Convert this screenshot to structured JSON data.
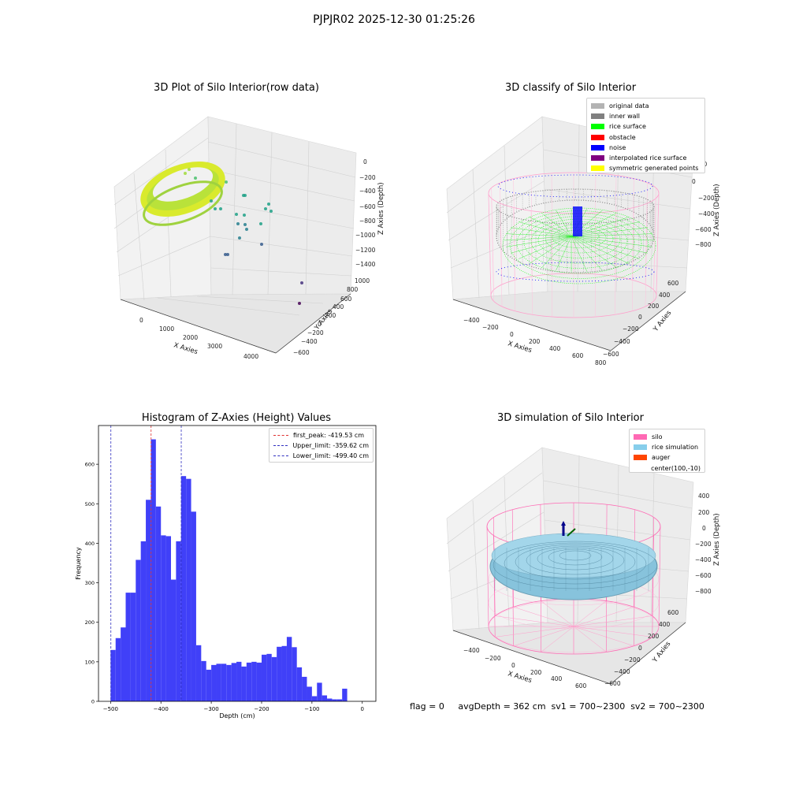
{
  "suptitle": "PJPJR02 2025-12-30 01:25:26",
  "status_line": "flag = 0     avgDepth = 362 cm  sv1 = 700~2300  sv2 = 700~2300",
  "chart_data": [
    {
      "type": "scatter",
      "projection": "3d",
      "title": "3D Plot of Silo Interior(row data)",
      "xlabel": "X Axies",
      "ylabel": "Y Axies",
      "zlabel": "Z Axies (Depth)",
      "x_ticks": [
        "0",
        "1000",
        "2000",
        "3000",
        "4000"
      ],
      "y_ticks": [
        "1000",
        "800",
        "600",
        "400",
        "200",
        "0",
        "−200",
        "−400",
        "−600"
      ],
      "z_ticks": [
        "0",
        "−200",
        "−400",
        "−600",
        "−800",
        "−1000",
        "−1200",
        "−1400"
      ],
      "colormap": [
        "#fde725",
        "#a0da39",
        "#4ac16d",
        "#1fa187",
        "#277f8e",
        "#365c8d",
        "#46327e",
        "#440154"
      ]
    },
    {
      "type": "scatter",
      "projection": "3d",
      "title": "3D classify of Silo Interior",
      "xlabel": "X Axies",
      "ylabel": "Y Axies",
      "zlabel": "Z Axies (Depth)",
      "x_ticks": [
        "−400",
        "−200",
        "0",
        "200",
        "400",
        "600",
        "800"
      ],
      "y_ticks": [
        "600",
        "400",
        "200",
        "0",
        "−200",
        "−400",
        "−600"
      ],
      "z_ticks": [
        "200",
        "0",
        "−200",
        "−400",
        "−600",
        "−800"
      ],
      "legend_position": "top-right",
      "legend": [
        {
          "label": "original data",
          "color": "#b3b3b3"
        },
        {
          "label": "inner wall",
          "color": "#808080"
        },
        {
          "label": "rice surface",
          "color": "#00ff00"
        },
        {
          "label": "obstacle",
          "color": "#ff0000"
        },
        {
          "label": "noise",
          "color": "#0000ff"
        },
        {
          "label": "interpolated rice surface",
          "color": "#800080"
        },
        {
          "label": "symmetric generated points",
          "color": "#ffff00"
        }
      ],
      "silo_color": "#ff9ecb"
    },
    {
      "type": "bar",
      "title": "Histogram of Z-Axies (Height) Values",
      "xlabel": "Depth (cm)",
      "ylabel": "Frequency",
      "xlim": [
        -524,
        27
      ],
      "ylim": [
        0,
        698
      ],
      "x_ticks": [
        -500,
        -400,
        -300,
        -200,
        -100,
        0
      ],
      "x_tick_labels": [
        "−500",
        "−400",
        "−300",
        "−200",
        "−100",
        "0"
      ],
      "y_ticks": [
        0,
        100,
        200,
        300,
        400,
        500,
        600
      ],
      "bin_left": -500,
      "bin_width": 10,
      "values": [
        130,
        160,
        187,
        275,
        275,
        358,
        405,
        510,
        663,
        493,
        420,
        418,
        308,
        405,
        570,
        563,
        480,
        142,
        102,
        80,
        92,
        95,
        95,
        92,
        97,
        100,
        88,
        98,
        100,
        98,
        118,
        120,
        112,
        138,
        140,
        163,
        137,
        86,
        62,
        37,
        13,
        47,
        15,
        7,
        5,
        5,
        32
      ],
      "bar_color": "#4040f8",
      "legend_position": "top-right",
      "reference_lines": [
        {
          "label": "first_peak: -419.53 cm",
          "x": -419.53,
          "color": "#e03030"
        },
        {
          "label": "Upper_limit: -359.62 cm",
          "x": -359.62,
          "color": "#3030c0"
        },
        {
          "label": "Lower_limit: -499.40 cm",
          "x": -499.4,
          "color": "#3030c0"
        }
      ]
    },
    {
      "type": "surface",
      "projection": "3d",
      "title": "3D simulation of Silo Interior",
      "xlabel": "X Axies",
      "ylabel": "Y Axies",
      "zlabel": "Z Axies (Depth)",
      "x_ticks": [
        "−400",
        "−200",
        "0",
        "200",
        "400",
        "600"
      ],
      "y_ticks": [
        "600",
        "400",
        "200",
        "0",
        "−200",
        "−400",
        "−600"
      ],
      "z_ticks": [
        "400",
        "200",
        "0",
        "−200",
        "−400",
        "−600",
        "−800"
      ],
      "legend_position": "top-right",
      "legend": [
        {
          "label": "silo",
          "color": "#ff69b4"
        },
        {
          "label": "rice simulation",
          "color": "#87ceeb"
        },
        {
          "label": "auger",
          "color": "#ff4500"
        },
        {
          "label": "center(100,-10)",
          "color": ""
        }
      ]
    }
  ]
}
